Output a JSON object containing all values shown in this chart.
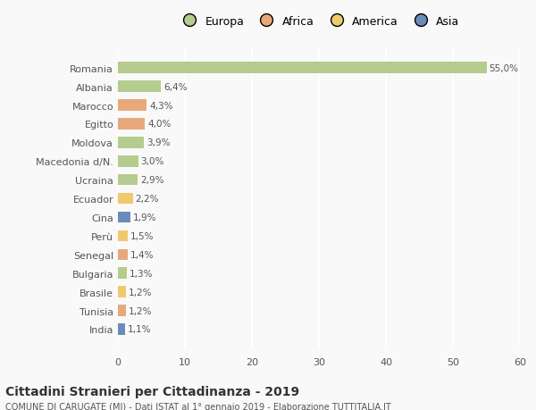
{
  "countries": [
    "Romania",
    "Albania",
    "Marocco",
    "Egitto",
    "Moldova",
    "Macedonia d/N.",
    "Ucraina",
    "Ecuador",
    "Cina",
    "Perù",
    "Senegal",
    "Bulgaria",
    "Brasile",
    "Tunisia",
    "India"
  ],
  "values": [
    55.0,
    6.4,
    4.3,
    4.0,
    3.9,
    3.0,
    2.9,
    2.2,
    1.9,
    1.5,
    1.4,
    1.3,
    1.2,
    1.2,
    1.1
  ],
  "continents": [
    "Europa",
    "Europa",
    "Africa",
    "Africa",
    "Europa",
    "Europa",
    "Europa",
    "America",
    "Asia",
    "America",
    "Africa",
    "Europa",
    "America",
    "Africa",
    "Asia"
  ],
  "continent_colors": {
    "Europa": "#b5cc8e",
    "Africa": "#e8a87c",
    "America": "#f0c96e",
    "Asia": "#6b8cba"
  },
  "legend_order": [
    "Europa",
    "Africa",
    "America",
    "Asia"
  ],
  "xlim": [
    0,
    60
  ],
  "xticks": [
    0,
    10,
    20,
    30,
    40,
    50,
    60
  ],
  "title": "Cittadini Stranieri per Cittadinanza - 2019",
  "subtitle": "COMUNE DI CARUGATE (MI) - Dati ISTAT al 1° gennaio 2019 - Elaborazione TUTTITALIA.IT",
  "bg_color": "#f9f9f9",
  "grid_color": "#ffffff",
  "label_color": "#555555",
  "bar_height": 0.6
}
